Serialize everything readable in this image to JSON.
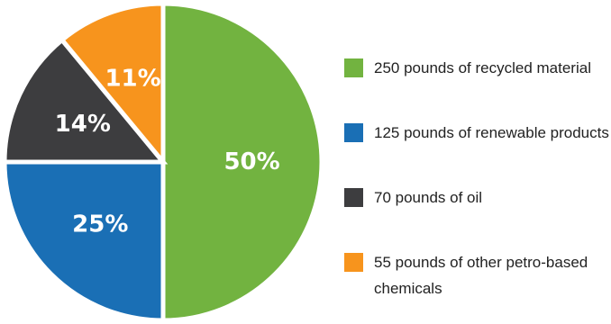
{
  "chart_data": {
    "type": "pie",
    "title": "",
    "slices": [
      {
        "label": "250 pounds of recycled material",
        "value": 50,
        "display": "50%",
        "color": "#72b340"
      },
      {
        "label": "125 pounds of renewable products",
        "value": 25,
        "display": "25%",
        "color": "#1a6fb5"
      },
      {
        "label": "70 pounds of oil",
        "value": 14,
        "display": "14%",
        "color": "#3d3d3f"
      },
      {
        "label": "55 pounds of other petro-based chemicals",
        "value": 11,
        "display": "11%",
        "color": "#f7941d"
      }
    ],
    "start_angle": "12 o'clock",
    "direction": "clockwise",
    "legend_position": "right"
  }
}
